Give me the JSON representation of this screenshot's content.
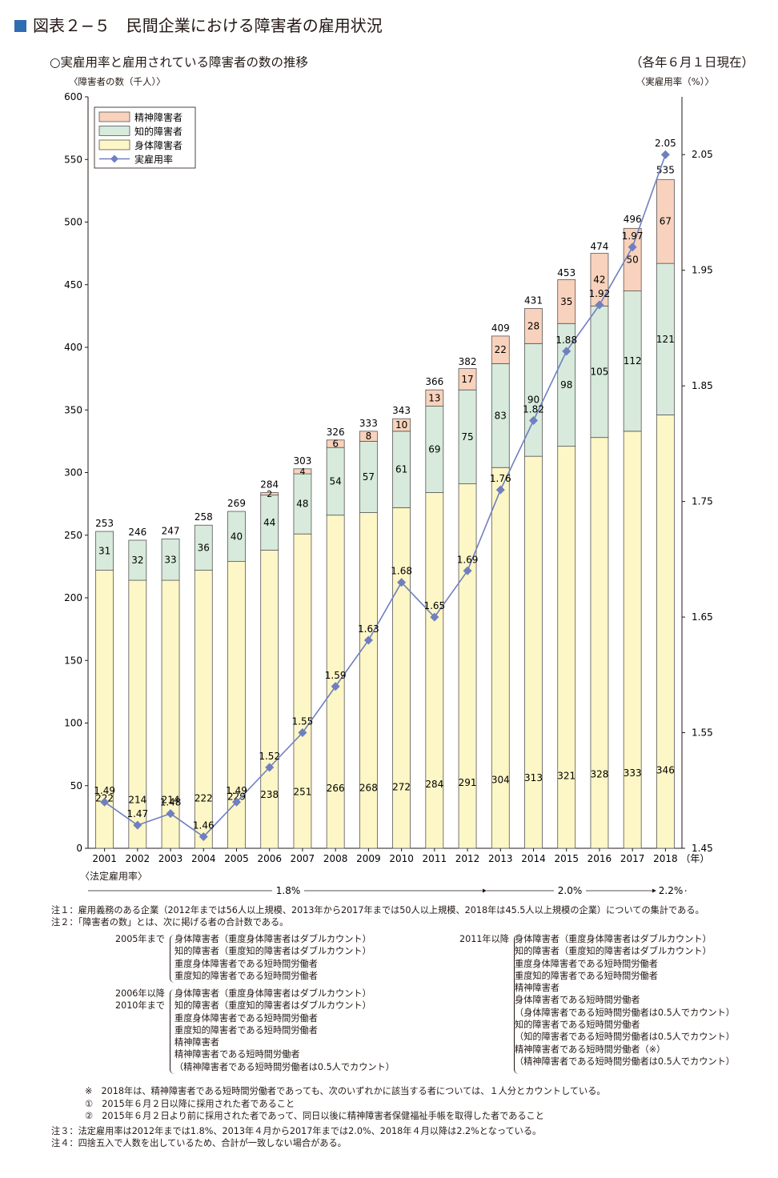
{
  "figure": {
    "number": "図表２−５",
    "title": "民間企業における障害者の雇用状況"
  },
  "subtitle": "○実雇用率と雇用されている障害者の数の推移",
  "date_note": "（各年６月１日現在）",
  "axis_labels": {
    "left": "〈障害者の数（千人）〉",
    "right": "〈実雇用率（%）〉"
  },
  "chart_data": {
    "type": "bar",
    "stacked": true,
    "categories": [
      "2001",
      "2002",
      "2003",
      "2004",
      "2005",
      "2006",
      "2007",
      "2008",
      "2009",
      "2010",
      "2011",
      "2012",
      "2013",
      "2014",
      "2015",
      "2016",
      "2017",
      "2018"
    ],
    "x_unit": "（年）",
    "series": [
      {
        "name": "身体障害者",
        "color": "#fdf6c6",
        "values": [
          222,
          214,
          214,
          222,
          229,
          238,
          251,
          266,
          268,
          272,
          284,
          291,
          304,
          313,
          321,
          328,
          333,
          346
        ]
      },
      {
        "name": "知的障害者",
        "color": "#d7eadb",
        "values": [
          31,
          32,
          33,
          36,
          40,
          44,
          48,
          54,
          57,
          61,
          69,
          75,
          83,
          90,
          98,
          105,
          112,
          121
        ]
      },
      {
        "name": "精神障害者",
        "color": "#f8d2bc",
        "values": [
          null,
          null,
          null,
          null,
          null,
          2,
          4,
          6,
          8,
          10,
          13,
          17,
          22,
          28,
          35,
          42,
          50,
          67
        ]
      }
    ],
    "totals": [
      253,
      246,
      247,
      258,
      269,
      284,
      303,
      326,
      333,
      343,
      366,
      382,
      409,
      431,
      453,
      474,
      496,
      535
    ],
    "line_series": {
      "name": "実雇用率",
      "color": "#6f7fbf",
      "axis": "right",
      "values": [
        1.49,
        1.47,
        1.48,
        1.46,
        1.49,
        1.52,
        1.55,
        1.59,
        1.63,
        1.68,
        1.65,
        1.69,
        1.76,
        1.82,
        1.88,
        1.92,
        1.97,
        2.05
      ]
    },
    "ylim_left": [
      0,
      600
    ],
    "yticks_left": [
      0,
      50,
      100,
      150,
      200,
      250,
      300,
      350,
      400,
      450,
      500,
      550,
      600
    ],
    "ylim_right": [
      1.45,
      2.1
    ],
    "yticks_right": [
      1.45,
      1.55,
      1.65,
      1.75,
      1.85,
      1.95,
      2.05
    ],
    "legend": [
      "精神障害者",
      "知的障害者",
      "身体障害者",
      "実雇用率"
    ],
    "legend_position": "top-left",
    "grid": false
  },
  "legal_rate": {
    "label": "〈法定雇用率〉",
    "segments": [
      "1.8%",
      "2.0%",
      "2.2%"
    ]
  },
  "notes": {
    "note1": "注１：雇用義務のある企業（2012年までは56人以上規模、2013年から2017年までは50人以上規模、2018年は45.5人以上規模の企業）についての集計である。",
    "note2_head": "注２：「障害者の数」とは、次に掲げる者の合計数である。",
    "block_2005": {
      "label": "2005年まで",
      "items": [
        "身体障害者（重度身体障害者はダブルカウント）",
        "知的障害者（重度知的障害者はダブルカウント）",
        "重度身体障害者である短時間労働者",
        "重度知的障害者である短時間労働者"
      ]
    },
    "block_2006": {
      "label1": "2006年以降",
      "label2": "2010年まで",
      "items": [
        "身体障害者（重度身体障害者はダブルカウント）",
        "知的障害者（重度知的障害者はダブルカウント）",
        "重度身体障害者である短時間労働者",
        "重度知的障害者である短時間労働者",
        "精神障害者",
        "精神障害者である短時間労働者",
        "（精神障害者である短時間労働者は0.5人でカウント）"
      ]
    },
    "block_2011": {
      "label": "2011年以降",
      "items": [
        "身体障害者（重度身体障害者はダブルカウント）",
        "知的障害者（重度知的障害者はダブルカウント）",
        "重度身体障害者である短時間労働者",
        "重度知的障害者である短時間労働者",
        "精神障害者",
        "身体障害者である短時間労働者",
        "（身体障害者である短時間労働者は0.5人でカウント）",
        "知的障害者である短時間労働者",
        "（知的障害者である短時間労働者は0.5人でカウント）",
        "精神障害者である短時間労働者（※）",
        "（精神障害者である短時間労働者は0.5人でカウント）"
      ]
    },
    "asterisk": "※　2018年は、精神障害者である短時間労働者であっても、次のいずれかに該当する者については、１人分とカウントしている。",
    "cond1": "①　2015年６月２日以降に採用された者であること",
    "cond2": "②　2015年６月２日より前に採用された者であって、同日以後に精神障害者保健福祉手帳を取得した者であること",
    "note3": "注３：法定雇用率は2012年までは1.8%、2013年４月から2017年までは2.0%、2018年４月以降は2.2%となっている。",
    "note4": "注４：四捨五入で人数を出しているため、合計が一致しない場合がある。"
  }
}
